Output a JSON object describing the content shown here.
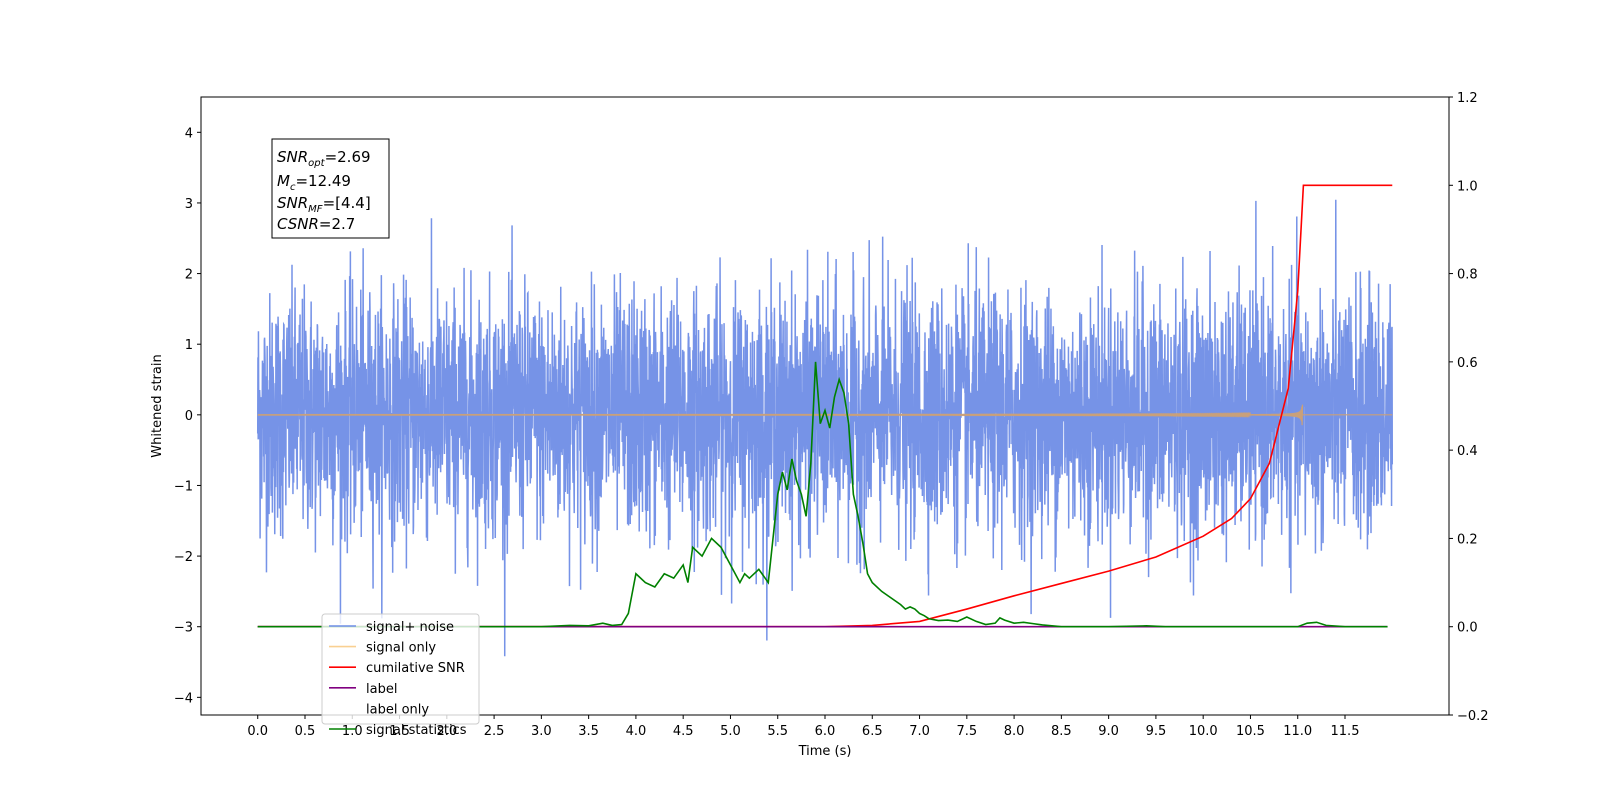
{
  "chart_data": {
    "type": "line",
    "xlabel": "Time (s)",
    "ylabel": "Whitened strain",
    "xlim": [
      -0.6,
      12.6
    ],
    "ylim": [
      -4.25,
      4.5
    ],
    "ylim_right": [
      -0.2,
      1.2
    ],
    "x_ticks": [
      "0.0",
      "0.5",
      "1.0",
      "1.5",
      "2.0",
      "2.5",
      "3.0",
      "3.5",
      "4.0",
      "4.5",
      "5.0",
      "5.5",
      "6.0",
      "6.5",
      "7.0",
      "7.5",
      "8.0",
      "8.5",
      "9.0",
      "9.5",
      "10.0",
      "10.5",
      "11.0",
      "11.5"
    ],
    "y_ticks_left": [
      -4,
      -3,
      -2,
      -1,
      0,
      1,
      2,
      3,
      4
    ],
    "y_ticks_left_labels": [
      "−4",
      "−3",
      "−2",
      "−1",
      "0",
      "1",
      "2",
      "3",
      "4"
    ],
    "y_ticks_right": [
      "−0.2",
      "0.0",
      "0.2",
      "0.4",
      "0.6",
      "0.8",
      "1.0",
      "1.2"
    ],
    "grid": false,
    "legend_position": "lower-left",
    "annotation": {
      "lines": [
        {
          "base": "SNR",
          "sub": "opt",
          "value": "=2.69"
        },
        {
          "base": "M",
          "sub": "c",
          "value": "=12.49"
        },
        {
          "base": "SNR",
          "sub": "MF",
          "value": "=[4.4]"
        },
        {
          "base": "CSNR",
          "sub": "",
          "value": "=2.7"
        }
      ]
    },
    "series": [
      {
        "name": "signal+ noise",
        "axis": "left",
        "color": "#6f8de6",
        "kind": "noise",
        "x_range": [
          0.0,
          12.0
        ],
        "std": 0.85,
        "clip": [
          -3.75,
          4.15
        ]
      },
      {
        "name": "signal only",
        "axis": "left",
        "color": "#f5b04a",
        "kind": "chirp",
        "x_range": [
          0.0,
          11.05
        ],
        "x_end": 12.0,
        "peak_amplitude": 0.4
      },
      {
        "name": "cumilative SNR",
        "axis": "right",
        "color": "#ff0000",
        "x": [
          0.0,
          6.0,
          6.5,
          7.0,
          7.5,
          8.0,
          8.5,
          9.0,
          9.5,
          10.0,
          10.3,
          10.5,
          10.7,
          10.9,
          11.0,
          11.05,
          11.06,
          12.0
        ],
        "y": [
          0.0,
          0.0,
          0.003,
          0.012,
          0.04,
          0.07,
          0.098,
          0.126,
          0.158,
          0.205,
          0.245,
          0.29,
          0.37,
          0.54,
          0.76,
          0.96,
          1.0,
          1.0
        ]
      },
      {
        "name": "label",
        "axis": "right",
        "color": "#800080",
        "x": [
          0.0,
          11.95
        ],
        "y": [
          0.0,
          0.0
        ]
      },
      {
        "name": "label only",
        "axis": "right",
        "color": "#ffffff",
        "legend_only": true
      },
      {
        "name": "signal statistics",
        "axis": "right",
        "color": "#008000",
        "x": [
          0.0,
          3.0,
          3.3,
          3.5,
          3.65,
          3.75,
          3.85,
          3.92,
          4.0,
          4.1,
          4.2,
          4.3,
          4.4,
          4.5,
          4.55,
          4.6,
          4.7,
          4.8,
          4.9,
          5.0,
          5.1,
          5.15,
          5.2,
          5.3,
          5.4,
          5.45,
          5.5,
          5.55,
          5.6,
          5.65,
          5.7,
          5.75,
          5.8,
          5.85,
          5.9,
          5.95,
          6.0,
          6.05,
          6.1,
          6.15,
          6.2,
          6.25,
          6.3,
          6.35,
          6.4,
          6.45,
          6.5,
          6.6,
          6.7,
          6.8,
          6.85,
          6.9,
          6.95,
          7.0,
          7.05,
          7.1,
          7.2,
          7.3,
          7.4,
          7.5,
          7.6,
          7.7,
          7.8,
          7.85,
          7.9,
          8.0,
          8.1,
          8.2,
          8.3,
          8.4,
          8.5,
          9.0,
          9.4,
          9.6,
          10.0,
          10.5,
          11.0,
          11.1,
          11.2,
          11.3,
          11.5,
          11.95
        ],
        "y": [
          0.0,
          0.0,
          0.003,
          0.002,
          0.008,
          0.003,
          0.005,
          0.03,
          0.12,
          0.1,
          0.09,
          0.12,
          0.11,
          0.14,
          0.1,
          0.18,
          0.16,
          0.2,
          0.18,
          0.14,
          0.1,
          0.12,
          0.11,
          0.13,
          0.1,
          0.2,
          0.3,
          0.35,
          0.31,
          0.38,
          0.33,
          0.3,
          0.25,
          0.37,
          0.6,
          0.46,
          0.49,
          0.45,
          0.52,
          0.56,
          0.53,
          0.46,
          0.3,
          0.25,
          0.19,
          0.12,
          0.1,
          0.08,
          0.065,
          0.05,
          0.04,
          0.045,
          0.04,
          0.03,
          0.025,
          0.018,
          0.014,
          0.015,
          0.012,
          0.022,
          0.012,
          0.005,
          0.008,
          0.02,
          0.015,
          0.008,
          0.01,
          0.007,
          0.004,
          0.002,
          0.0,
          0.0,
          0.002,
          0.0,
          0.0,
          0.0,
          0.0,
          0.008,
          0.01,
          0.003,
          0.0,
          0.0
        ]
      }
    ]
  }
}
